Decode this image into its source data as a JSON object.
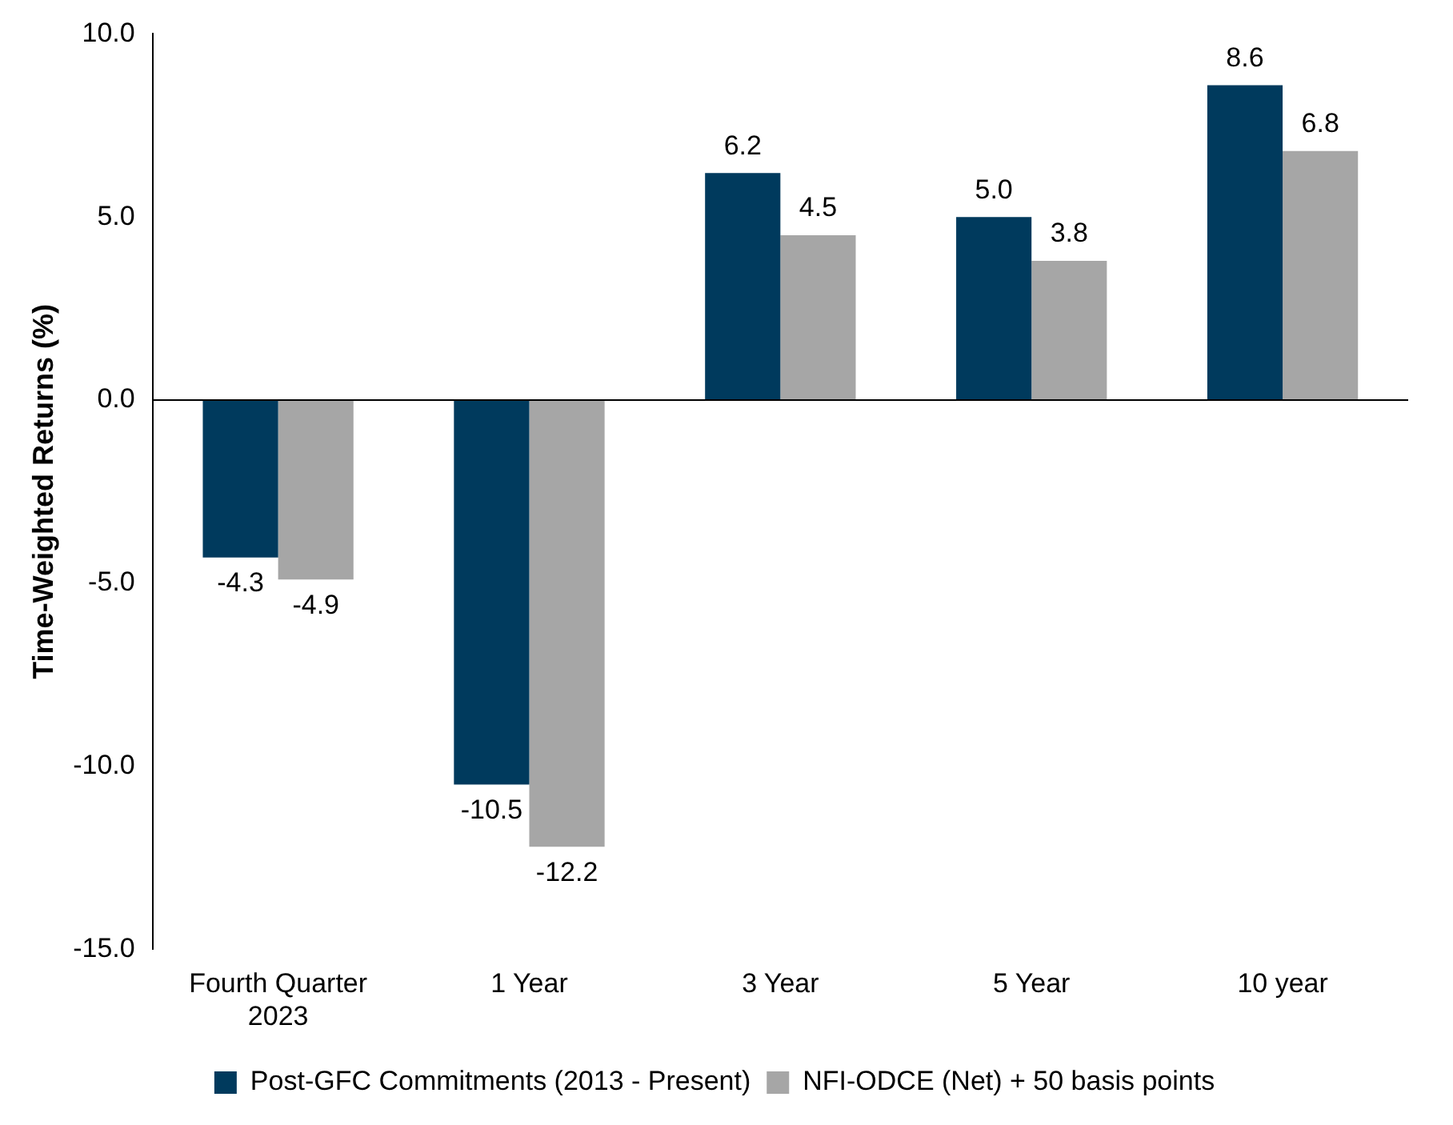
{
  "chart_data": {
    "type": "bar",
    "ylabel": "Time-Weighted Returns (%)",
    "categories": [
      "Fourth Quarter\n2023",
      "1 Year",
      "3 Year",
      "5 Year",
      "10 year"
    ],
    "series": [
      {
        "name": "Post-GFC Commitments (2013 - Present)",
        "color": "#003a5d",
        "values": [
          -4.3,
          -10.5,
          6.2,
          5.0,
          8.6
        ],
        "value_labels": [
          "-4.3",
          "-10.5",
          "6.2",
          "5.0",
          "8.6"
        ]
      },
      {
        "name": "NFI-ODCE (Net) + 50 basis points",
        "color": "#a6a6a6",
        "values": [
          -4.9,
          -12.2,
          4.5,
          3.8,
          6.8
        ],
        "value_labels": [
          "-4.9",
          "-12.2",
          "4.5",
          "3.8",
          "6.8"
        ]
      }
    ],
    "ylim": [
      -15,
      10
    ],
    "yticks": [
      {
        "value": -15,
        "label": "-15.0"
      },
      {
        "value": -10,
        "label": "-10.0"
      },
      {
        "value": -5,
        "label": "-5.0"
      },
      {
        "value": 0,
        "label": "0.0"
      },
      {
        "value": 5,
        "label": "5.0"
      },
      {
        "value": 10,
        "label": "10.0"
      }
    ],
    "ref_lines": [
      {
        "axis": "y",
        "value": 0,
        "color": "#000000"
      }
    ],
    "legend": "bottom"
  }
}
